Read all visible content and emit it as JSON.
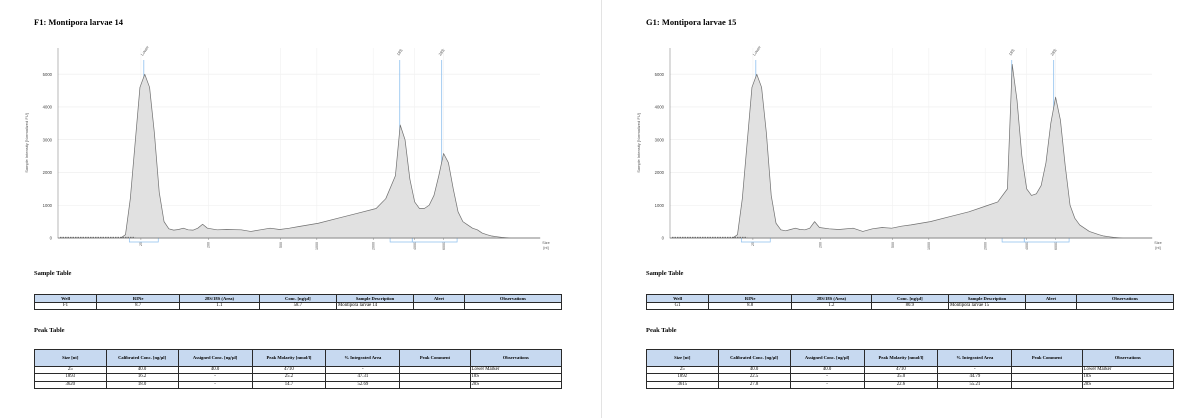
{
  "panels": [
    {
      "title": "F1: Montipora larvae 14",
      "sample_table_title": "Sample Table",
      "peak_table_title": "Peak Table",
      "sample_table": {
        "headers": [
          "Well",
          "RINe",
          "28S/18S (Area)",
          "Conc. [ng/µl]",
          "Sample Description",
          "Alert",
          "Observations"
        ],
        "rows": [
          [
            "F1",
            "8.7",
            "1.1",
            "58.7",
            "Montipora larvae 14",
            "",
            ""
          ]
        ]
      },
      "peak_table": {
        "headers": [
          "Size [nt]",
          "Calibrated Conc. [ng/µl]",
          "Assigned Conc. [ng/µl]",
          "Peak Molarity [nmol/l]",
          "% Integrated Area",
          "Peak Comment",
          "Observations"
        ],
        "rows": [
          [
            "25",
            "40.0",
            "40.0",
            "4710",
            "-",
            "",
            "Lower Marker"
          ],
          [
            "1893",
            "16.2",
            "-",
            "25.2",
            "47.31",
            "",
            "18S"
          ],
          [
            "3620",
            "18.0",
            "-",
            "14.7",
            "52.69",
            "",
            "28S"
          ]
        ]
      },
      "chart_data": {
        "type": "area",
        "ylabel": "Sample Intensity [Normalized FU]",
        "xlabel": "Size [nt]",
        "ylim": [
          0,
          5800
        ],
        "yticks": [
          0,
          1000,
          2000,
          3000,
          4000,
          5000
        ],
        "xticks": [
          "25",
          "200",
          "500",
          "1000",
          "2000",
          "4000",
          "6000"
        ],
        "peak_labels": [
          "Lower",
          "18S",
          "28S"
        ],
        "peaks": [
          {
            "name": "Lower",
            "size_nt": 25,
            "height": 5000
          },
          {
            "name": "18S",
            "size_nt": 1893,
            "height": 3450
          },
          {
            "name": "28S",
            "size_nt": 3620,
            "height": 2580
          }
        ],
        "series": [
          {
            "x": [
              0,
              13,
              14,
              15,
              17,
              18,
              19,
              20,
              21,
              22,
              23,
              24,
              25,
              26,
              27,
              28,
              29,
              30,
              31,
              33,
              35,
              38,
              40,
              42,
              44,
              46,
              48,
              50,
              54,
              58,
              62,
              66,
              68,
              70,
              71,
              72,
              73,
              74,
              75,
              76,
              77,
              78,
              79,
              80,
              81,
              82,
              83,
              84,
              85,
              86,
              87,
              88,
              89,
              90,
              91,
              92,
              93,
              94,
              96,
              100
            ],
            "y": [
              0,
              0,
              100,
              1200,
              4600,
              5000,
              4600,
              3200,
              1400,
              500,
              280,
              240,
              260,
              300,
              250,
              240,
              300,
              420,
              300,
              250,
              260,
              250,
              200,
              250,
              300,
              260,
              300,
              350,
              450,
              600,
              750,
              900,
              1200,
              1900,
              3450,
              3000,
              1800,
              1100,
              900,
              900,
              1000,
              1300,
              1900,
              2580,
              2300,
              1500,
              800,
              500,
              400,
              300,
              250,
              150,
              100,
              60,
              40,
              20,
              10,
              0,
              0,
              0
            ]
          }
        ]
      }
    },
    {
      "title": "G1: Montipora larvae 15",
      "sample_table_title": "Sample Table",
      "peak_table_title": "Peak Table",
      "sample_table": {
        "headers": [
          "Well",
          "RINe",
          "28S/18S (Area)",
          "Conc. [ng/µl]",
          "Sample Description",
          "Alert",
          "Observations"
        ],
        "rows": [
          [
            "G1",
            "8.8",
            "1.2",
            "80.9",
            "Montipora larvae 15",
            "",
            ""
          ]
        ]
      },
      "peak_table": {
        "headers": [
          "Size [nt]",
          "Calibrated Conc. [ng/µl]",
          "Assigned Conc. [ng/µl]",
          "Peak Molarity [nmol/l]",
          "% Integrated Area",
          "Peak Comment",
          "Observations"
        ],
        "rows": [
          [
            "25",
            "40.0",
            "40.0",
            "4710",
            "-",
            "",
            "Lower Marker"
          ],
          [
            "1892",
            "22.5",
            "-",
            "35.0",
            "44.79",
            "",
            "18S"
          ],
          [
            "3615",
            "27.8",
            "-",
            "22.6",
            "55.21",
            "",
            "28S"
          ]
        ]
      },
      "chart_data": {
        "type": "area",
        "ylabel": "Sample Intensity [Normalized FU]",
        "xlabel": "Size [nt]",
        "ylim": [
          0,
          5800
        ],
        "yticks": [
          0,
          1000,
          2000,
          3000,
          4000,
          5000
        ],
        "xticks": [
          "25",
          "200",
          "500",
          "1000",
          "2000",
          "4000",
          "6000"
        ],
        "peak_labels": [
          "Lower",
          "18S",
          "28S"
        ],
        "peaks": [
          {
            "name": "Lower",
            "size_nt": 25,
            "height": 5000
          },
          {
            "name": "18S",
            "size_nt": 1892,
            "height": 5300
          },
          {
            "name": "28S",
            "size_nt": 3615,
            "height": 4300
          }
        ],
        "series": [
          {
            "x": [
              0,
              13,
              14,
              15,
              17,
              18,
              19,
              20,
              21,
              22,
              23,
              24,
              25,
              26,
              27,
              28,
              29,
              30,
              31,
              33,
              35,
              38,
              40,
              42,
              44,
              46,
              48,
              50,
              54,
              58,
              62,
              66,
              68,
              70,
              71,
              72,
              73,
              74,
              75,
              76,
              77,
              78,
              79,
              80,
              81,
              82,
              83,
              84,
              85,
              86,
              87,
              88,
              89,
              90,
              91,
              92,
              93,
              94,
              96,
              100
            ],
            "y": [
              0,
              0,
              100,
              1200,
              4600,
              5000,
              4600,
              3200,
              1300,
              450,
              250,
              220,
              260,
              300,
              260,
              250,
              300,
              500,
              320,
              280,
              260,
              300,
              200,
              280,
              320,
              300,
              360,
              400,
              500,
              650,
              800,
              1000,
              1100,
              1500,
              5300,
              4200,
              2500,
              1500,
              1300,
              1350,
              1600,
              2300,
              3500,
              4300,
              3600,
              2200,
              1000,
              600,
              400,
              300,
              200,
              150,
              100,
              60,
              40,
              20,
              10,
              0,
              0,
              0
            ]
          }
        ]
      }
    }
  ]
}
